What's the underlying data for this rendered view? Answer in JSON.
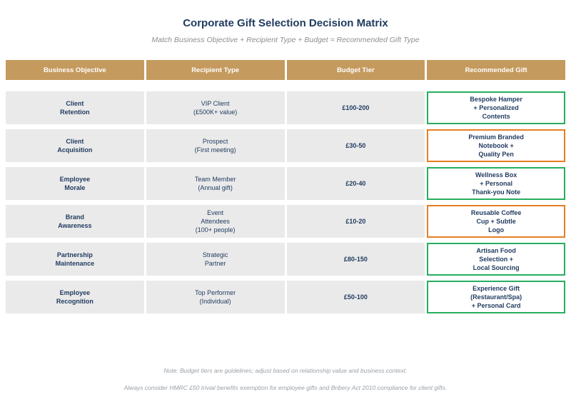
{
  "title": "Corporate Gift Selection Decision Matrix",
  "subtitle": "Match Business Objective + Recipient Type + Budget = Recommended Gift Type",
  "table": {
    "headers": [
      "Business Objective",
      "Recipient Type",
      "Budget Tier",
      "Recommended Gift"
    ],
    "rows": [
      {
        "objective": "Client\nRetention",
        "recipient": "VIP Client\n(£500K+ value)",
        "budget": "£100-200",
        "gift": "Bespoke Hamper\n+ Personalized\nContents",
        "accent": "#27ae60"
      },
      {
        "objective": "Client\nAcquisition",
        "recipient": "Prospect\n(First meeting)",
        "budget": "£30-50",
        "gift": "Premium Branded\nNotebook +\nQuality Pen",
        "accent": "#e67e22"
      },
      {
        "objective": "Employee\nMorale",
        "recipient": "Team Member\n(Annual gift)",
        "budget": "£20-40",
        "gift": "Wellness Box\n+ Personal\nThank-you Note",
        "accent": "#27ae60"
      },
      {
        "objective": "Brand\nAwareness",
        "recipient": "Event\nAttendees\n(100+ people)",
        "budget": "£10-20",
        "gift": "Reusable Coffee\nCup + Subtle\nLogo",
        "accent": "#e67e22"
      },
      {
        "objective": "Partnership\nMaintenance",
        "recipient": "Strategic\nPartner",
        "budget": "£80-150",
        "gift": "Artisan Food\nSelection +\nLocal Sourcing",
        "accent": "#27ae60"
      },
      {
        "objective": "Employee\nRecognition",
        "recipient": "Top Performer\n(Individual)",
        "budget": "£50-100",
        "gift": "Experience Gift\n(Restaurant/Spa)\n+ Personal Card",
        "accent": "#27ae60"
      }
    ]
  },
  "notes": [
    "Note: Budget tiers are guidelines; adjust based on relationship value and business context.",
    "Always consider HMRC £50 trivial benefits exemption for employee gifts and Bribery Act 2010 compliance for client gifts."
  ],
  "colors": {
    "title": "#1f3a5f",
    "header_bg": "#c49a5e",
    "row_bg": "#eaeaea",
    "green": "#27ae60",
    "orange": "#e67e22"
  }
}
